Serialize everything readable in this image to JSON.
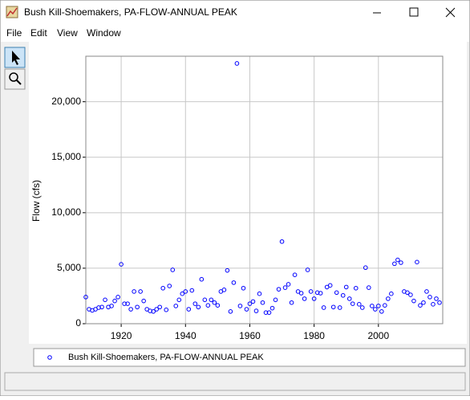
{
  "window": {
    "title": "Bush Kill-Shoemakers, PA-FLOW-ANNUAL PEAK",
    "menu": [
      "File",
      "Edit",
      "View",
      "Window"
    ]
  },
  "chart_data": {
    "type": "scatter",
    "ylabel": "Flow (cfs)",
    "x": [
      1909,
      1910,
      1911,
      1912,
      1913,
      1914,
      1915,
      1916,
      1917,
      1918,
      1919,
      1920,
      1921,
      1922,
      1923,
      1924,
      1925,
      1926,
      1927,
      1928,
      1929,
      1930,
      1931,
      1932,
      1933,
      1934,
      1935,
      1936,
      1937,
      1938,
      1939,
      1940,
      1941,
      1942,
      1943,
      1944,
      1945,
      1946,
      1947,
      1948,
      1949,
      1950,
      1951,
      1952,
      1953,
      1954,
      1955,
      1956,
      1957,
      1958,
      1959,
      1960,
      1961,
      1962,
      1963,
      1964,
      1965,
      1966,
      1967,
      1968,
      1969,
      1970,
      1971,
      1972,
      1973,
      1974,
      1975,
      1976,
      1977,
      1978,
      1979,
      1980,
      1981,
      1982,
      1983,
      1984,
      1985,
      1986,
      1987,
      1988,
      1989,
      1990,
      1991,
      1992,
      1993,
      1994,
      1995,
      1996,
      1997,
      1998,
      1999,
      2000,
      2001,
      2002,
      2003,
      2004,
      2005,
      2006,
      2007,
      2008,
      2009,
      2010,
      2011,
      2012,
      2013,
      2014,
      2015,
      2016,
      2017,
      2018,
      2019
    ],
    "series": [
      {
        "name": "Bush Kill-Shoemakers, PA-FLOW-ANNUAL PEAK",
        "color": "#0000ff",
        "values": [
          2400,
          1300,
          1200,
          1300,
          1450,
          1500,
          2150,
          1500,
          1600,
          2050,
          2400,
          5350,
          1800,
          1800,
          1300,
          2900,
          1500,
          2900,
          2050,
          1300,
          1150,
          1100,
          1300,
          1500,
          3200,
          1250,
          3400,
          4850,
          1600,
          2150,
          2700,
          2900,
          1300,
          3000,
          1800,
          1500,
          4000,
          2150,
          1650,
          2150,
          1900,
          1650,
          2900,
          3050,
          4800,
          1100,
          3700,
          23450,
          1600,
          3200,
          1300,
          1800,
          2000,
          1150,
          2700,
          1900,
          1000,
          1000,
          1400,
          2150,
          3100,
          7400,
          3250,
          3550,
          1900,
          4400,
          2900,
          2750,
          2250,
          4850,
          2900,
          2250,
          2800,
          2750,
          1450,
          3300,
          3450,
          1500,
          2800,
          1450,
          2550,
          3300,
          2250,
          1800,
          3200,
          1750,
          1450,
          5050,
          3250,
          1600,
          1300,
          1600,
          1100,
          1650,
          2250,
          2700,
          5400,
          5750,
          5500,
          2900,
          2800,
          2600,
          2050,
          5550,
          1650,
          1900,
          2900,
          2400,
          1750,
          2250,
          1900
        ]
      }
    ],
    "xlim": [
      1909,
      2020
    ],
    "xticks": [
      1920,
      1940,
      1960,
      1980,
      2000
    ],
    "ylim": [
      0,
      24100
    ],
    "yticks": [
      0,
      {
        "value": 5000,
        "label": "5,000"
      },
      {
        "value": 10000,
        "label": "10,000"
      },
      {
        "value": 15000,
        "label": "15,000"
      },
      {
        "value": 20000,
        "label": "20,000"
      }
    ],
    "grid": true
  }
}
